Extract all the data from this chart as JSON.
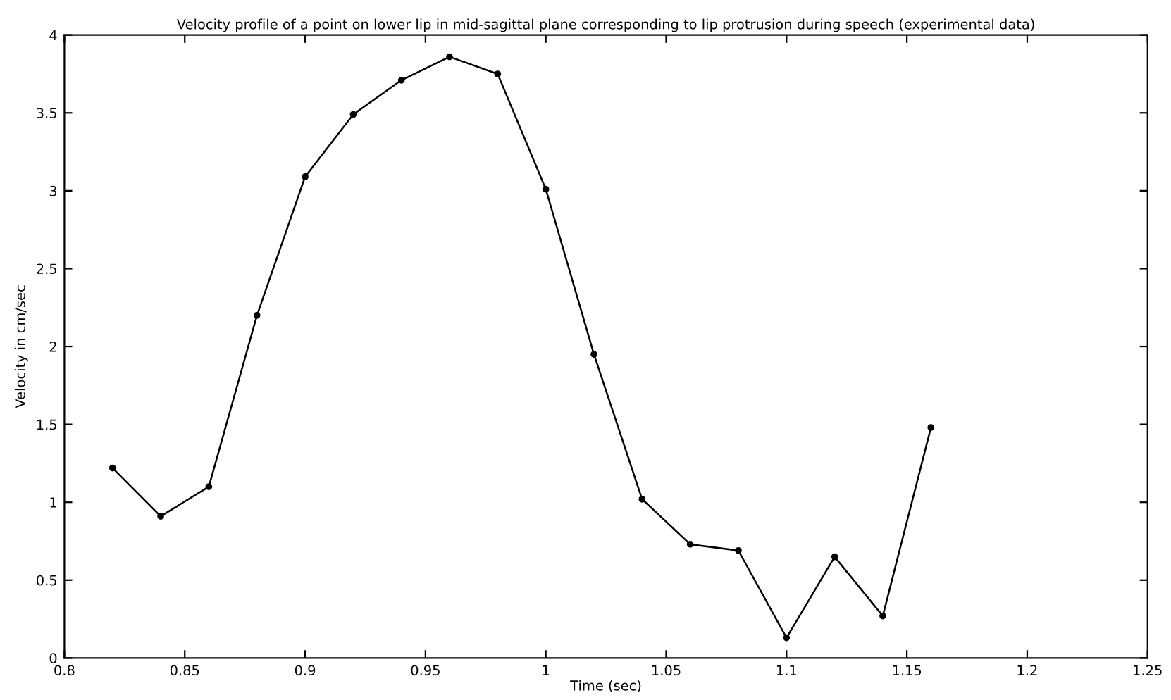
{
  "chart_data": {
    "type": "line",
    "title": "Velocity profile of a point on lower lip in mid-sagittal plane corresponding to lip protrusion during speech (experimental data)",
    "xlabel": "Time (sec)",
    "ylabel": "Velocity in cm/sec",
    "x": [
      0.82,
      0.84,
      0.86,
      0.88,
      0.9,
      0.92,
      0.94,
      0.96,
      0.98,
      1.0,
      1.02,
      1.04,
      1.06,
      1.08,
      1.1,
      1.12,
      1.14,
      1.16
    ],
    "series": [
      {
        "color": "#000000",
        "values": [
          1.22,
          0.91,
          1.1,
          2.2,
          3.09,
          3.49,
          3.71,
          3.86,
          3.75,
          3.01,
          1.95,
          1.02,
          0.73,
          0.69,
          0.13,
          0.65,
          0.27,
          1.48
        ]
      }
    ],
    "xlim": [
      0.8,
      1.25
    ],
    "xticks": [
      0.8,
      0.85,
      0.9,
      0.95,
      1,
      1.05,
      1.1,
      1.15,
      1.2,
      1.25
    ],
    "ylim": [
      0,
      4
    ],
    "yticks": [
      0,
      0.5,
      1,
      1.5,
      2,
      2.5,
      3,
      3.5,
      4
    ],
    "grid": false,
    "marker": "circle",
    "line_style": "solid"
  }
}
